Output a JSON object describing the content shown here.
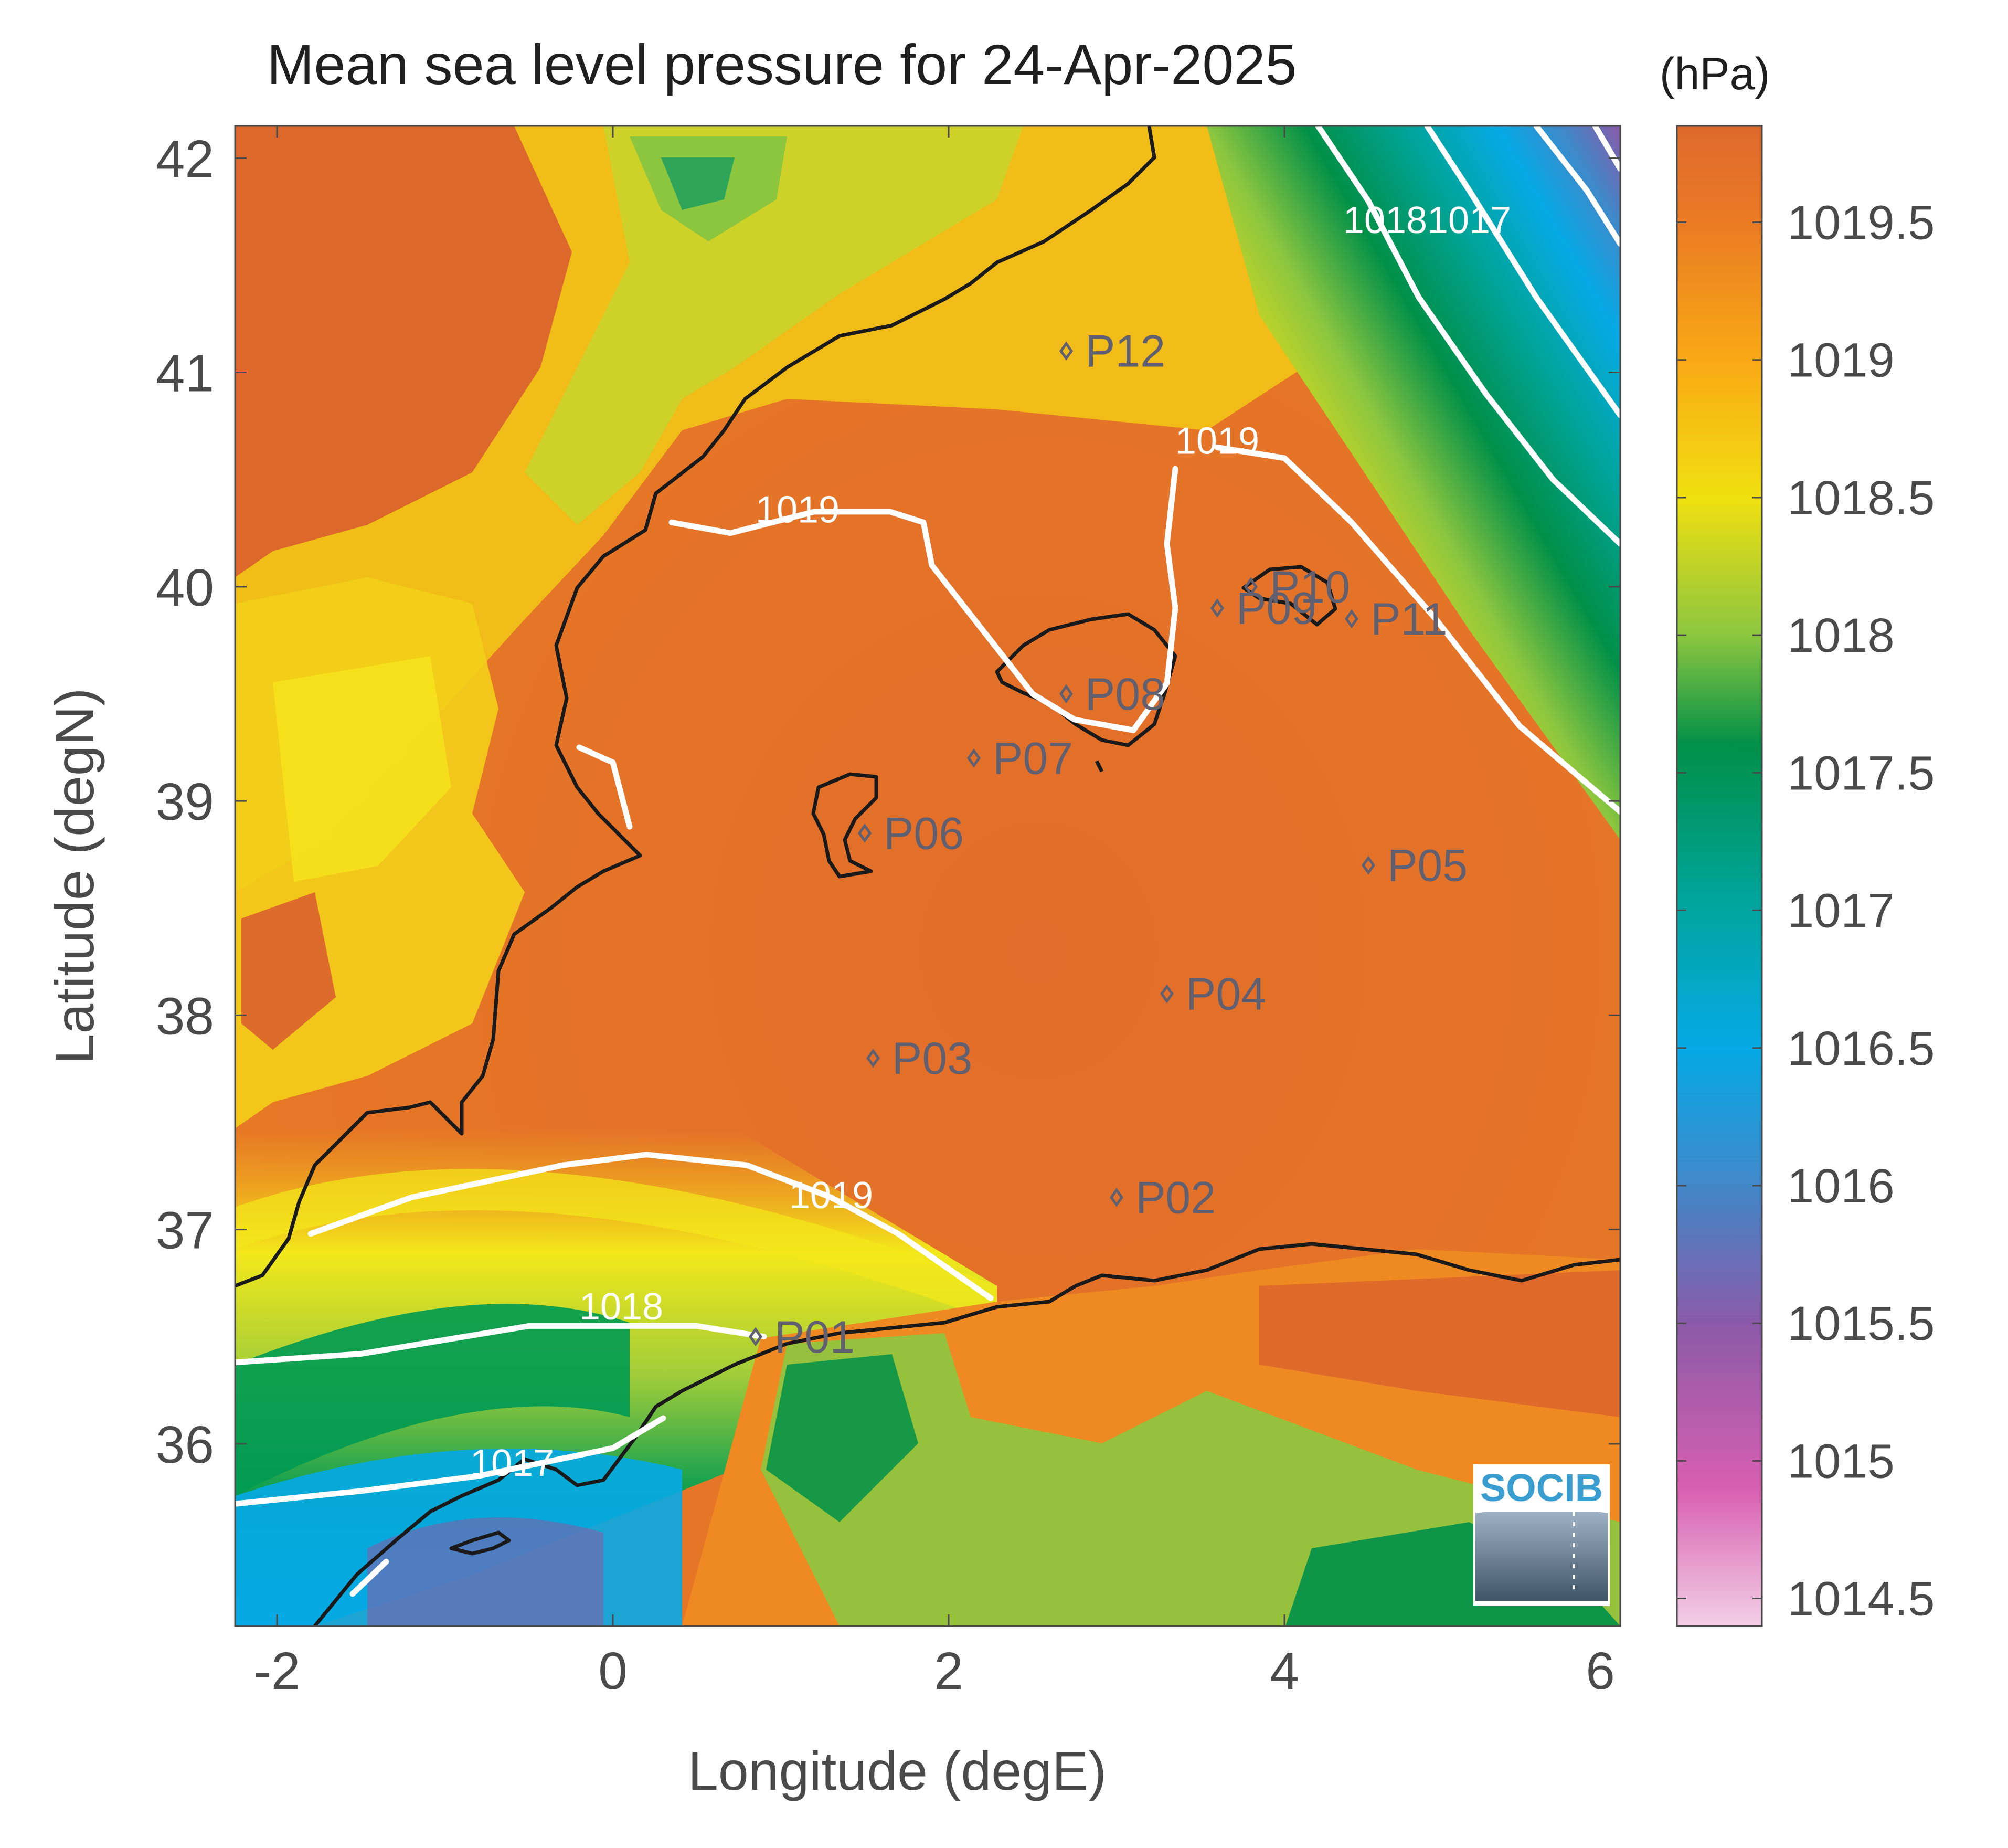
{
  "title": "Mean sea level pressure for 24-Apr-2025",
  "colorbar": {
    "unit_label": "(hPa)",
    "range": [
      1014.4,
      1019.85
    ],
    "ticks": [
      "1014.5",
      "1015",
      "1015.5",
      "1016",
      "1016.5",
      "1017",
      "1017.5",
      "1018",
      "1018.5",
      "1019",
      "1019.5"
    ],
    "tick_values": [
      1014.5,
      1015,
      1015.5,
      1016,
      1016.5,
      1017,
      1017.5,
      1018,
      1018.5,
      1019,
      1019.5
    ],
    "stops": [
      {
        "v": 1014.4,
        "color": "#f2cfe6"
      },
      {
        "v": 1014.9,
        "color": "#d85fb0"
      },
      {
        "v": 1015.5,
        "color": "#8a5aa8"
      },
      {
        "v": 1016.0,
        "color": "#4187c8"
      },
      {
        "v": 1016.5,
        "color": "#05aae6"
      },
      {
        "v": 1017.0,
        "color": "#00a5a0"
      },
      {
        "v": 1017.6,
        "color": "#009048"
      },
      {
        "v": 1018.0,
        "color": "#8cc63f"
      },
      {
        "v": 1018.5,
        "color": "#f0e010"
      },
      {
        "v": 1019.0,
        "color": "#f9a814"
      },
      {
        "v": 1019.5,
        "color": "#ea7b24"
      },
      {
        "v": 1019.85,
        "color": "#dd6a2c"
      }
    ]
  },
  "map": {
    "xlabel": "Longitude (degE)",
    "ylabel": "Latitude (degN)",
    "xlim": [
      -2.25,
      6
    ],
    "ylim": [
      35.15,
      42.15
    ],
    "xticks": [
      -2,
      0,
      2,
      4,
      6
    ],
    "yticks": [
      36,
      37,
      38,
      39,
      40,
      41,
      42
    ],
    "xtick_labels": [
      "-2",
      "0",
      "2",
      "4",
      "6"
    ],
    "ytick_labels": [
      "36",
      "37",
      "38",
      "39",
      "40",
      "41",
      "42"
    ],
    "contours": [
      {
        "label": "1017",
        "points": [
          [
            -2.25,
            35.72
          ],
          [
            -1.5,
            35.78
          ],
          [
            -0.8,
            35.85
          ],
          [
            0.0,
            35.98
          ],
          [
            0.3,
            36.12
          ]
        ],
        "label_at": [
          -0.6,
          35.85
        ]
      },
      {
        "label": "1017",
        "points": [
          [
            -1.55,
            35.3
          ],
          [
            -1.35,
            35.45
          ]
        ],
        "label_at": null
      },
      {
        "label": "1018",
        "points": [
          [
            -2.25,
            36.38
          ],
          [
            -1.5,
            36.42
          ],
          [
            -0.5,
            36.55
          ],
          [
            0.5,
            36.55
          ],
          [
            0.9,
            36.5
          ]
        ],
        "label_at": [
          0.05,
          36.58
        ]
      },
      {
        "label": "1019",
        "points": [
          [
            -1.8,
            36.98
          ],
          [
            -1.2,
            37.15
          ],
          [
            -0.3,
            37.3
          ],
          [
            0.2,
            37.35
          ],
          [
            0.8,
            37.3
          ],
          [
            1.3,
            37.15
          ],
          [
            1.7,
            36.98
          ],
          [
            2.25,
            36.68
          ]
        ],
        "label_at": [
          1.3,
          37.1
        ]
      },
      {
        "label": "1019",
        "points": [
          [
            -0.2,
            39.25
          ],
          [
            0.0,
            39.18
          ],
          [
            0.1,
            38.88
          ]
        ],
        "label_at": null
      },
      {
        "label": "1019",
        "points": [
          [
            0.35,
            40.3
          ],
          [
            0.7,
            40.25
          ],
          [
            1.2,
            40.35
          ],
          [
            1.65,
            40.35
          ],
          [
            1.85,
            40.3
          ],
          [
            1.9,
            40.1
          ],
          [
            2.1,
            39.9
          ],
          [
            2.35,
            39.65
          ],
          [
            2.5,
            39.5
          ],
          [
            2.75,
            39.38
          ],
          [
            3.1,
            39.33
          ],
          [
            3.3,
            39.55
          ],
          [
            3.35,
            39.9
          ],
          [
            3.3,
            40.2
          ],
          [
            3.35,
            40.55
          ]
        ],
        "label_at": [
          1.1,
          40.3
        ]
      },
      {
        "label": "1019",
        "points": [
          [
            3.6,
            40.65
          ],
          [
            4.0,
            40.6
          ],
          [
            4.4,
            40.3
          ],
          [
            4.9,
            39.85
          ],
          [
            5.4,
            39.35
          ],
          [
            6.0,
            38.95
          ]
        ],
        "label_at": [
          3.6,
          40.62
        ]
      },
      {
        "label": "1018",
        "points": [
          [
            4.2,
            42.15
          ],
          [
            4.5,
            41.8
          ],
          [
            4.8,
            41.35
          ],
          [
            5.2,
            40.9
          ],
          [
            5.6,
            40.5
          ],
          [
            6.0,
            40.2
          ]
        ],
        "label_at": [
          4.6,
          41.65
        ]
      },
      {
        "label": "1017",
        "points": [
          [
            4.85,
            42.15
          ],
          [
            5.1,
            41.85
          ],
          [
            5.5,
            41.35
          ],
          [
            6.0,
            40.8
          ]
        ],
        "label_at": [
          5.1,
          41.65
        ]
      },
      {
        "label": "",
        "points": [
          [
            5.5,
            42.15
          ],
          [
            5.8,
            41.85
          ],
          [
            6.0,
            41.6
          ]
        ],
        "label_at": null
      },
      {
        "label": "",
        "points": [
          [
            5.85,
            42.15
          ],
          [
            6.0,
            41.95
          ]
        ],
        "label_at": null
      }
    ],
    "stations": [
      {
        "id": "P01",
        "lon": 0.85,
        "lat": 36.5
      },
      {
        "id": "P02",
        "lon": 3.0,
        "lat": 37.15
      },
      {
        "id": "P03",
        "lon": 1.55,
        "lat": 37.8
      },
      {
        "id": "P04",
        "lon": 3.3,
        "lat": 38.1
      },
      {
        "id": "P05",
        "lon": 4.5,
        "lat": 38.7
      },
      {
        "id": "P06",
        "lon": 1.5,
        "lat": 38.85
      },
      {
        "id": "P07",
        "lon": 2.15,
        "lat": 39.2
      },
      {
        "id": "P08",
        "lon": 2.7,
        "lat": 39.5
      },
      {
        "id": "P09",
        "lon": 3.6,
        "lat": 39.9
      },
      {
        "id": "P10",
        "lon": 3.8,
        "lat": 40.0
      },
      {
        "id": "P11",
        "lon": 4.4,
        "lat": 39.85
      },
      {
        "id": "P12",
        "lon": 2.7,
        "lat": 41.1
      }
    ],
    "logo": "SOCIB",
    "line_color": "#1a1a1a",
    "contour_color": "#ffffff",
    "station_color": "#606070"
  }
}
